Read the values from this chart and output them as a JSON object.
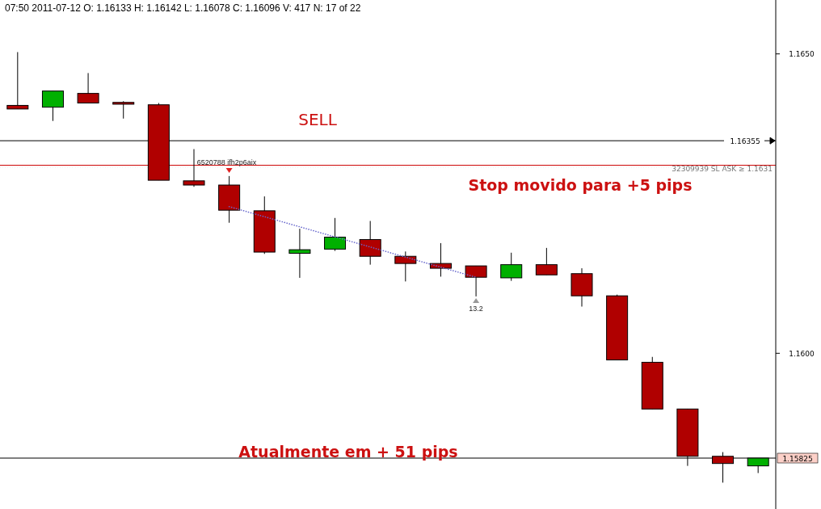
{
  "chart_data": {
    "type": "candlestick",
    "title": "07:50 2011-07-12  O: 1.16133  H: 1.16142  L: 1.16078  C: 1.16096  V: 417  N: 17 of 22",
    "categories": [
      null,
      null,
      null,
      null,
      null,
      null,
      null,
      null,
      null,
      null,
      null,
      null,
      null,
      null,
      null,
      null,
      null,
      null,
      null,
      null,
      null,
      null
    ],
    "ohlc": [
      [
        1.16414,
        1.16503,
        1.16408,
        1.16408
      ],
      [
        1.16411,
        1.16438,
        1.16388,
        1.16438
      ],
      [
        1.16434,
        1.16468,
        1.16418,
        1.16418
      ],
      [
        1.16419,
        1.16421,
        1.16392,
        1.16416
      ],
      [
        1.16415,
        1.16418,
        1.16289,
        1.16289
      ],
      [
        1.16288,
        1.16341,
        1.16278,
        1.16281
      ],
      [
        1.16281,
        1.16296,
        1.16218,
        1.16239
      ],
      [
        1.16238,
        1.16262,
        1.16166,
        1.16169
      ],
      [
        1.16167,
        1.16208,
        1.16126,
        1.16173
      ],
      [
        1.16174,
        1.16226,
        1.16171,
        1.16194
      ],
      [
        1.1619,
        1.16221,
        1.16148,
        1.16162
      ],
      [
        1.16162,
        1.1617,
        1.1612,
        1.1615
      ],
      [
        1.1615,
        1.16184,
        1.16128,
        1.16142
      ],
      [
        1.16146,
        1.16146,
        1.16095,
        1.16127
      ],
      [
        1.16126,
        1.16168,
        1.16121,
        1.16148
      ],
      [
        1.16148,
        1.16176,
        1.16131,
        1.16131
      ],
      [
        1.16133,
        1.16142,
        1.16078,
        1.16096
      ],
      [
        1.16096,
        1.16098,
        1.15989,
        1.15989
      ],
      [
        1.15985,
        1.15994,
        1.15907,
        1.15907
      ],
      [
        1.15907,
        1.15907,
        1.15812,
        1.15828
      ],
      [
        1.15828,
        1.15835,
        1.15784,
        1.15816
      ],
      [
        1.15812,
        1.15825,
        1.158,
        1.15825
      ]
    ],
    "series": [
      {
        "type": "line",
        "color": "#6666cc",
        "line_style": "dotted",
        "values": [
          null,
          null,
          null,
          null,
          null,
          null,
          1.16245,
          null,
          null,
          null,
          null,
          null,
          null,
          1.16127,
          null,
          null,
          null,
          null,
          null,
          null,
          null,
          null
        ]
      }
    ],
    "ylim": [
      1.1574,
      1.1659
    ],
    "yticks": [
      {
        "value": 1.165,
        "label": "1.1650"
      },
      {
        "value": 1.16,
        "label": "1.1600"
      }
    ],
    "ref_lines": [
      {
        "axis": "y",
        "value": 1.16355,
        "label": "1.16355",
        "color": "#000000"
      },
      {
        "axis": "y",
        "value": 1.16314,
        "color": "#cc0000"
      },
      {
        "axis": "y",
        "value": 1.1631,
        "label": "32309939 SL ASK ≥ 1.1631",
        "color": "#888888",
        "line_style": "dotted"
      },
      {
        "axis": "y",
        "value": 1.15825,
        "label": "1.15825",
        "color": "#000000"
      }
    ],
    "annotations": [
      "SELL",
      "Stop movido para +5 pips",
      "Atualmente em + 51 pips",
      "6520788 ifh2p6aix",
      "13.2"
    ],
    "grid": false,
    "legend": false
  }
}
